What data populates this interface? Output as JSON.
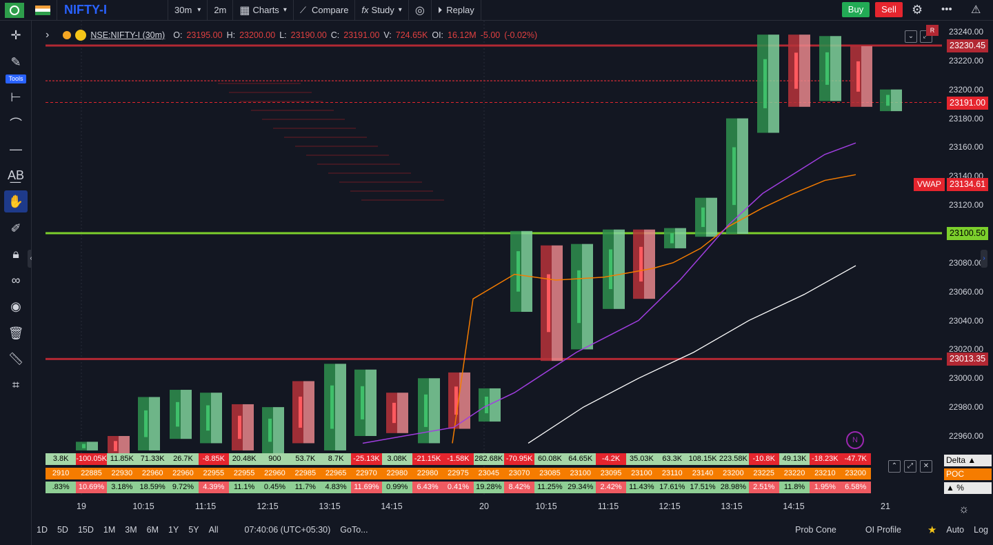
{
  "topbar": {
    "symbol": "NIFTY-I",
    "interval": "30m",
    "interval2": "2m",
    "charts_label": "Charts",
    "compare_label": "Compare",
    "study_label": "Study",
    "replay_label": "Replay",
    "buy_label": "Buy",
    "sell_label": "Sell"
  },
  "legend": {
    "symbol_interval": "NSE:NIFTY-I (30m)",
    "o_label": "O:",
    "o_value": "23195.00",
    "h_label": "H:",
    "h_value": "23200.00",
    "l_label": "L:",
    "l_value": "23190.00",
    "c_label": "C:",
    "c_value": "23191.00",
    "v_label": "V:",
    "v_value": "724.65K",
    "oi_label": "OI:",
    "oi_value": "16.12M",
    "change": "-5.00",
    "change_pct": "(-0.02%)"
  },
  "toolbar": {
    "tools_label": "Tools"
  },
  "yaxis": {
    "ticks": [
      "23240.00",
      "23220.00",
      "23200.00",
      "23180.00",
      "23160.00",
      "23140.00",
      "23120.00",
      "23100.00",
      "23080.00",
      "23060.00",
      "23040.00",
      "23020.00",
      "23000.00",
      "22980.00",
      "22960.00"
    ],
    "price_labels": [
      {
        "text": "23230.45",
        "color": "#b22833"
      },
      {
        "text": "23191.00",
        "color": "#e5252e"
      },
      {
        "text": "23134.61",
        "color": "#e5252e"
      },
      {
        "text": "23100.50",
        "color": "#7ccf2c"
      },
      {
        "text": "23013.35",
        "color": "#b22833"
      }
    ],
    "vwap_label": "VWAP"
  },
  "xaxis": {
    "ticks": [
      "19",
      "10:15",
      "11:15",
      "12:15",
      "13:15",
      "14:15",
      "20",
      "10:15",
      "11:15",
      "12:15",
      "13:15",
      "14:15",
      "21"
    ]
  },
  "bottom": {
    "ranges": [
      "1D",
      "5D",
      "15D",
      "1M",
      "3M",
      "6M",
      "1Y",
      "5Y",
      "All"
    ],
    "time": "07:40:06 (UTC+05:30)",
    "goto": "GoTo...",
    "prob_cone": "Prob Cone",
    "oi_profile": "OI Profile",
    "auto": "Auto",
    "log": "Log"
  },
  "table": {
    "delta_label": "Delta ▲",
    "poc_label": "POC",
    "pct_label": "▲ %",
    "delta": [
      "3.8K",
      "-100.05K",
      "11.85K",
      "71.33K",
      "26.7K",
      "-8.85K",
      "20.48K",
      "900",
      "53.7K",
      "8.7K",
      "-25.13K",
      "3.08K",
      "-21.15K",
      "-1.58K",
      "282.68K",
      "-70.95K",
      "60.08K",
      "64.65K",
      "-4.2K",
      "35.03K",
      "63.3K",
      "108.15K",
      "223.58K",
      "-10.8K",
      "49.13K",
      "-18.23K",
      "-47.7K"
    ],
    "poc": [
      "2910",
      "22885",
      "22930",
      "22960",
      "22960",
      "22955",
      "22955",
      "22960",
      "22985",
      "22965",
      "22970",
      "22980",
      "22980",
      "22975",
      "23045",
      "23070",
      "23085",
      "23100",
      "23095",
      "23100",
      "23110",
      "23140",
      "23200",
      "23225",
      "23220",
      "23210",
      "23200"
    ],
    "pct": [
      ".83%",
      "10.69%",
      "3.18%",
      "18.59%",
      "9.72%",
      "4.39%",
      "11.1%",
      "0.45%",
      "11.7%",
      "4.83%",
      "11.69%",
      "0.99%",
      "6.43%",
      "0.41%",
      "19.28%",
      "8.42%",
      "11.25%",
      "29.34%",
      "2.42%",
      "11.43%",
      "17.61%",
      "17.51%",
      "28.98%",
      "2.51%",
      "11.8%",
      "1.95%",
      "6.58%"
    ]
  },
  "badge": "N",
  "colors": {
    "bg": "#131722",
    "up": "#22ab55",
    "down": "#e5252e",
    "poc": "#f57c00",
    "vwap": "#f57c00",
    "support": "#7ccf2c"
  }
}
